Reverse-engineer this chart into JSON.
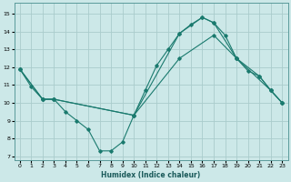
{
  "xlabel": "Humidex (Indice chaleur)",
  "ylabel": "",
  "bg_color": "#cce8e8",
  "grid_color": "#aacccc",
  "line_color": "#1a7a6e",
  "xlim": [
    -0.5,
    23.5
  ],
  "ylim": [
    6.8,
    15.6
  ],
  "yticks": [
    7,
    8,
    9,
    10,
    11,
    12,
    13,
    14,
    15
  ],
  "xticks": [
    0,
    1,
    2,
    3,
    4,
    5,
    6,
    7,
    8,
    9,
    10,
    11,
    12,
    13,
    14,
    15,
    16,
    17,
    18,
    19,
    20,
    21,
    22,
    23
  ],
  "line1_x": [
    0,
    1,
    2,
    3,
    4,
    5,
    6,
    7,
    8,
    9,
    10,
    11,
    12,
    13,
    14,
    15,
    16,
    17,
    18,
    19,
    20,
    21,
    22,
    23
  ],
  "line1_y": [
    11.9,
    10.9,
    10.2,
    10.2,
    9.5,
    9.0,
    8.5,
    7.3,
    7.3,
    7.8,
    9.3,
    10.7,
    12.1,
    13.0,
    13.9,
    14.4,
    14.8,
    14.5,
    13.8,
    12.5,
    11.8,
    11.5,
    10.7,
    10.0
  ],
  "line2_x": [
    0,
    2,
    3,
    10,
    14,
    17,
    19,
    22,
    23
  ],
  "line2_y": [
    11.9,
    10.2,
    10.2,
    9.3,
    12.5,
    13.8,
    12.5,
    10.7,
    10.0
  ],
  "line3_x": [
    0,
    2,
    3,
    10,
    14,
    16,
    17,
    19,
    21,
    22,
    23
  ],
  "line3_y": [
    11.9,
    10.2,
    10.2,
    9.3,
    13.9,
    14.8,
    14.5,
    12.5,
    11.5,
    10.7,
    10.0
  ]
}
